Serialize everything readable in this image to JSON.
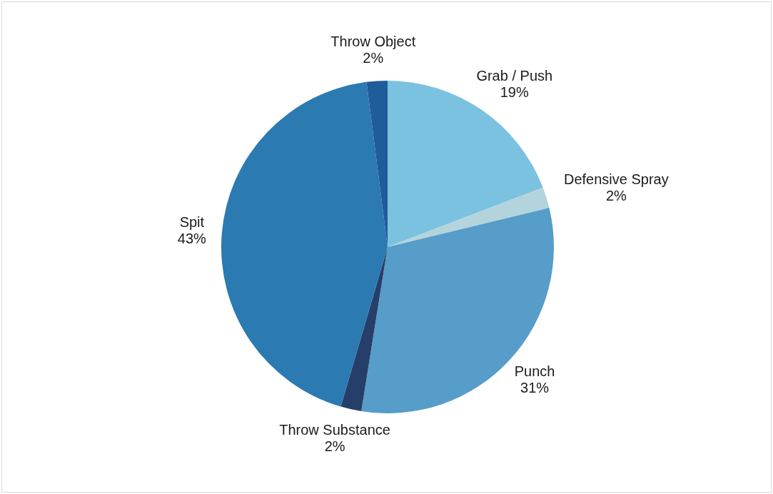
{
  "chart_data": {
    "type": "pie",
    "categories": [
      "Grab / Push",
      "Defensive Spray",
      "Punch",
      "Throw Substance",
      "Spit",
      "Throw Object"
    ],
    "values": [
      19,
      2,
      31,
      2,
      43,
      2
    ],
    "colors": [
      "#7bc2e0",
      "#b3d4dc",
      "#569dc9",
      "#263f6a",
      "#2b7ab2",
      "#1f5c9a"
    ],
    "value_labels": [
      "19%",
      "2%",
      "31%",
      "2%",
      "43%",
      "2%"
    ]
  }
}
